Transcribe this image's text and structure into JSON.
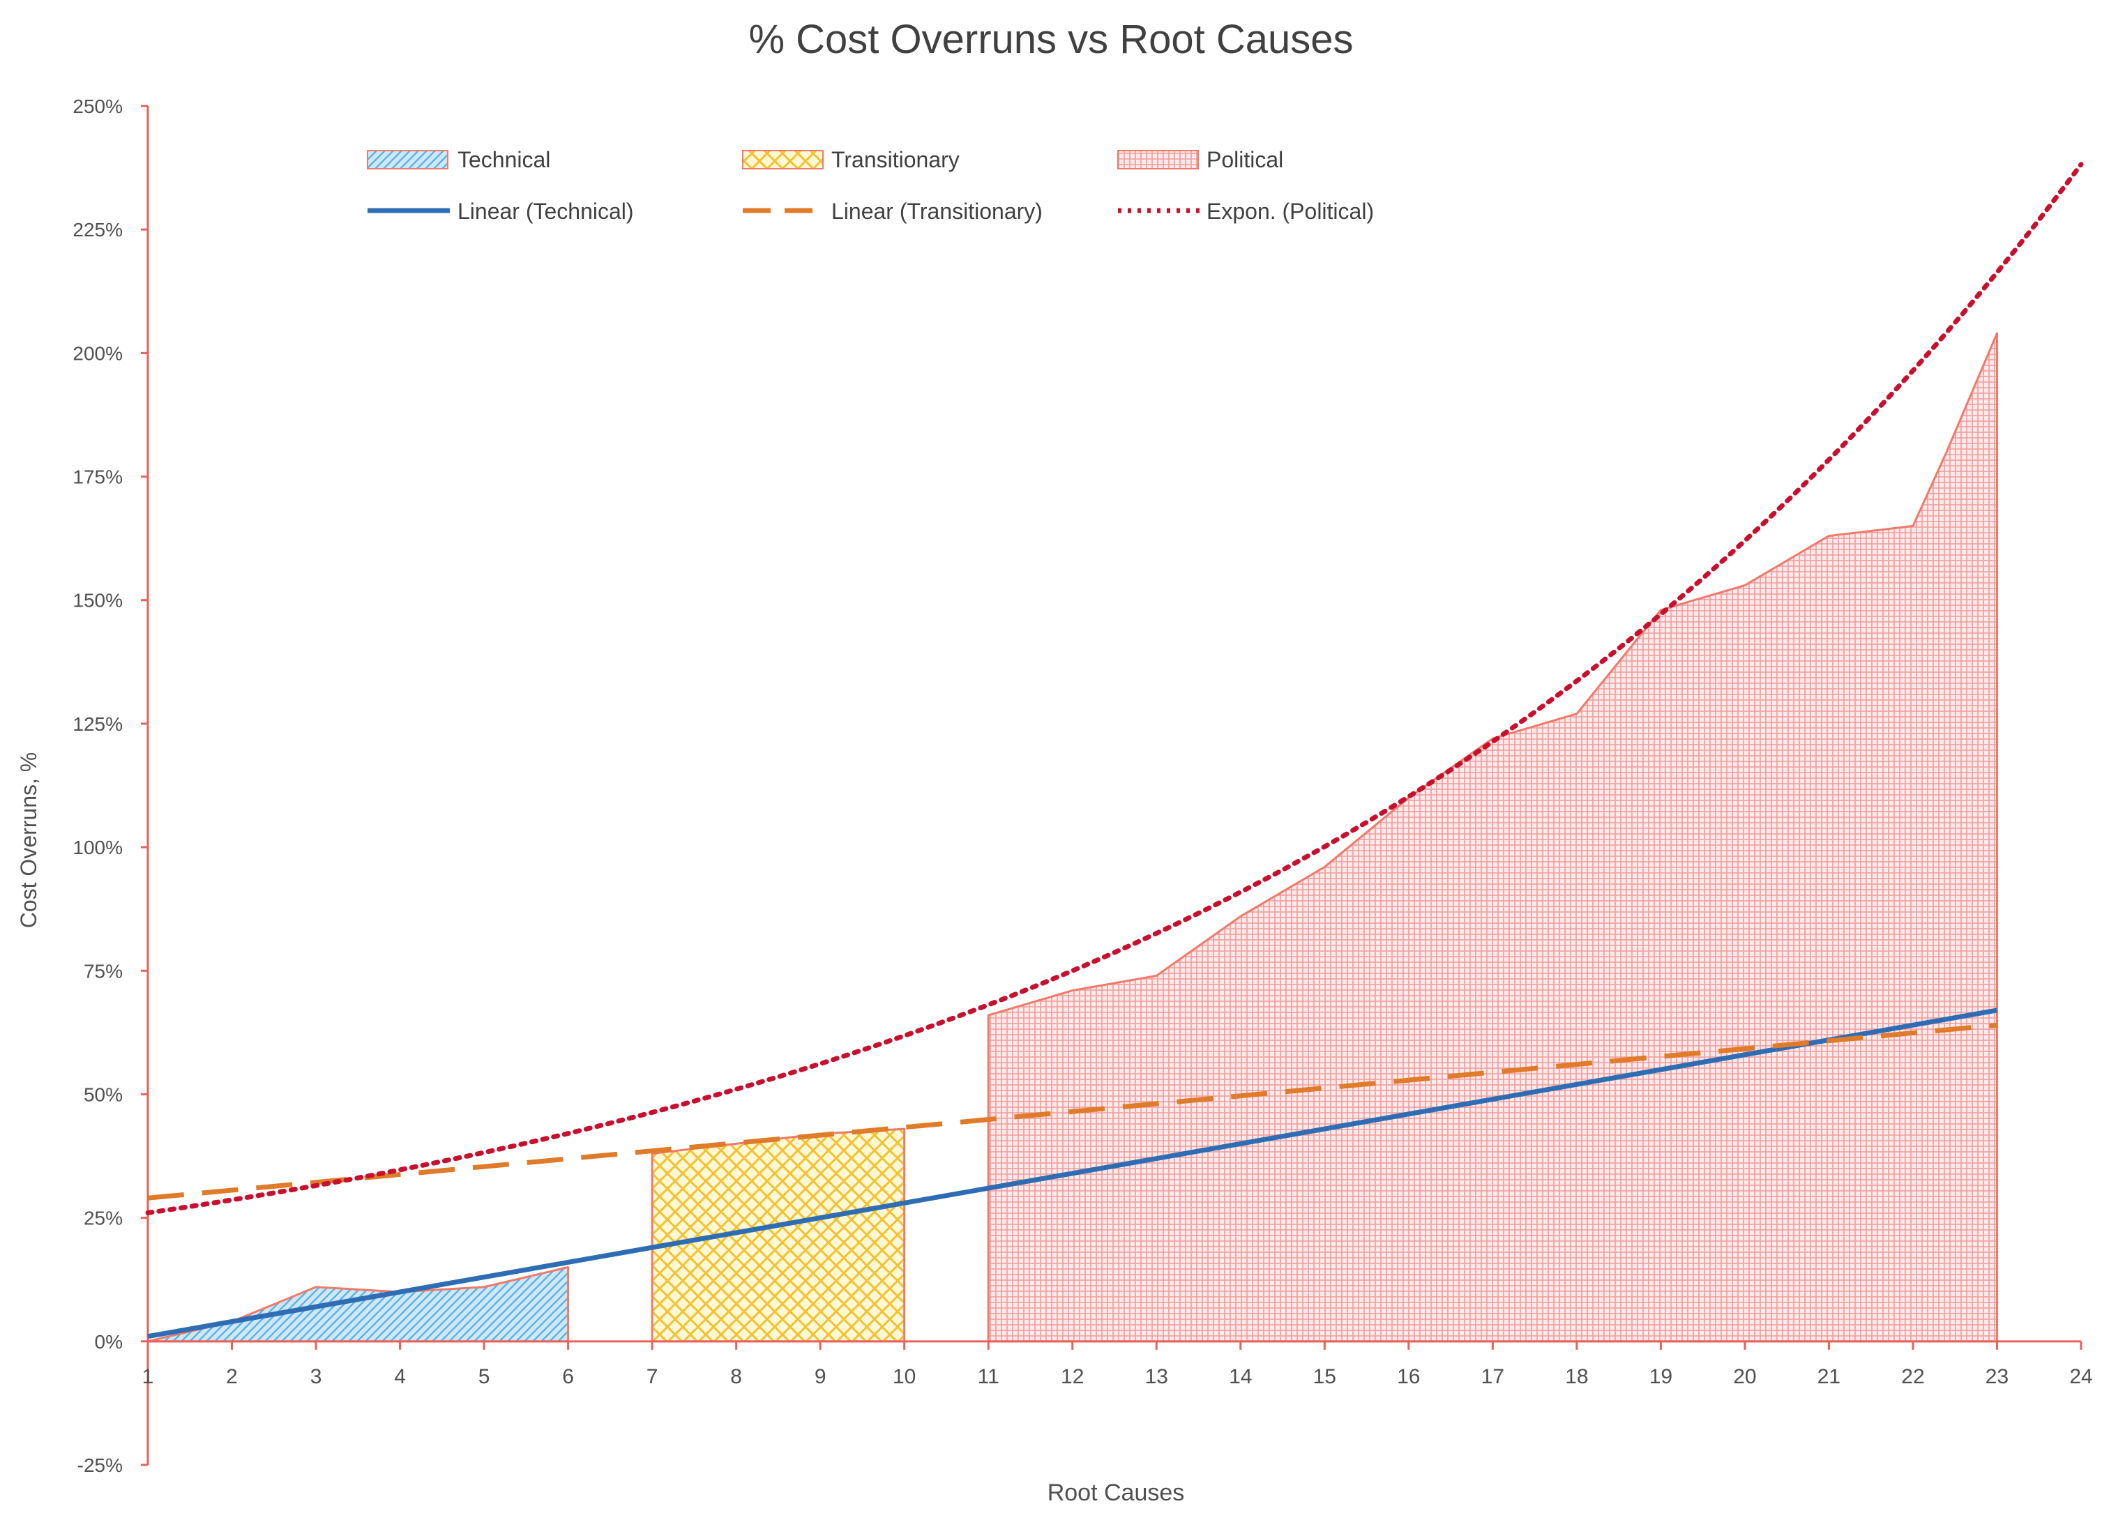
{
  "chart_data": {
    "type": "area",
    "title": "% Cost Overruns vs Root Causes",
    "xlabel": "Root Causes",
    "ylabel": "Cost Overruns, %",
    "xlim": [
      1,
      24
    ],
    "ylim": [
      -0.25,
      2.5
    ],
    "x_ticks": [
      1,
      2,
      3,
      4,
      5,
      6,
      7,
      8,
      9,
      10,
      11,
      12,
      13,
      14,
      15,
      16,
      17,
      18,
      19,
      20,
      21,
      22,
      23,
      24
    ],
    "x_tick_labels": [
      "1",
      "2",
      "3",
      "4",
      "5",
      "6",
      "7",
      "8",
      "9",
      "10",
      "11",
      "12",
      "13",
      "14",
      "15",
      "16",
      "17",
      "18",
      "19",
      "20",
      "21",
      "22",
      "23",
      "24"
    ],
    "y_ticks": [
      -0.25,
      0,
      0.25,
      0.5,
      0.75,
      1.0,
      1.25,
      1.5,
      1.75,
      2.0,
      2.25,
      2.5
    ],
    "y_tick_labels": [
      "-25%",
      "0%",
      "25%",
      "50%",
      "75%",
      "100%",
      "125%",
      "150%",
      "175%",
      "200%",
      "225%",
      "250%"
    ],
    "grid": false,
    "legend_position": "top",
    "legend": [
      {
        "label": "Technical",
        "kind": "area",
        "pattern": "technical"
      },
      {
        "label": "Transitionary",
        "kind": "area",
        "pattern": "transitionary"
      },
      {
        "label": "Political",
        "kind": "area",
        "pattern": "political"
      },
      {
        "label": "Linear (Technical)",
        "kind": "line",
        "style": "solid",
        "color": "#2e6db4"
      },
      {
        "label": "Linear (Transitionary)",
        "kind": "line",
        "style": "dashed",
        "color": "#e07b2a"
      },
      {
        "label": "Expon. (Political)",
        "kind": "line",
        "style": "dotted",
        "color": "#c8102e"
      }
    ],
    "series": [
      {
        "name": "Technical",
        "fill": "#cfe8f7",
        "pattern_color": "#5fb2e6",
        "edge": "#f07a6a",
        "x": [
          1,
          1.5,
          2,
          3,
          4,
          5,
          6
        ],
        "values": [
          0,
          0.02,
          0.04,
          0.11,
          0.1,
          0.11,
          0.15
        ]
      },
      {
        "name": "Transitionary",
        "fill": "#fff8d6",
        "pattern_color": "#f2c230",
        "edge": "#f07a6a",
        "x": [
          7,
          8,
          9,
          10
        ],
        "values": [
          0.38,
          0.4,
          0.42,
          0.43
        ]
      },
      {
        "name": "Political",
        "fill": "#fdeaea",
        "pattern_color": "#f08a8a",
        "edge": "#f07a6a",
        "x": [
          11,
          12,
          13,
          14,
          15,
          16,
          17,
          18,
          19,
          20,
          21,
          22,
          22.4,
          23
        ],
        "values": [
          0.66,
          0.71,
          0.74,
          0.86,
          0.96,
          1.1,
          1.22,
          1.27,
          1.48,
          1.53,
          1.63,
          1.65,
          1.8,
          2.04
        ]
      }
    ],
    "trendlines": [
      {
        "name": "Linear (Technical)",
        "type": "linear",
        "color": "#2e6db4",
        "style": "solid",
        "x": [
          1,
          23
        ],
        "values": [
          0.01,
          0.67
        ]
      },
      {
        "name": "Linear (Transitionary)",
        "type": "linear",
        "color": "#e07b2a",
        "style": "dashed",
        "x": [
          1,
          23
        ],
        "values": [
          0.29,
          0.64
        ]
      },
      {
        "name": "Expon. (Political)",
        "type": "exponential",
        "color": "#c8102e",
        "style": "dotted",
        "start": 0.26,
        "growth": 0.0963,
        "x_range": [
          1,
          24
        ]
      }
    ],
    "axis_color": "#e8625a"
  }
}
